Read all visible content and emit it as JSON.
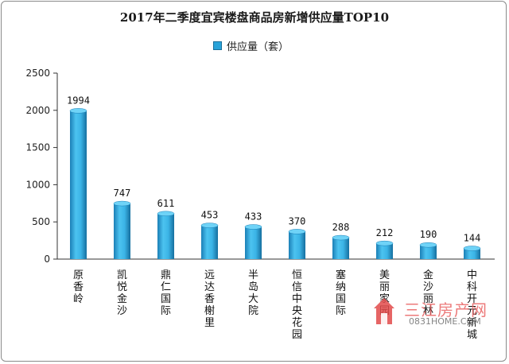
{
  "chart_data": {
    "type": "bar",
    "title": "2017年二季度宜宾楼盘商品房新增供应量TOP10",
    "legend": "供应量（套）",
    "categories": [
      "原香岭",
      "凯悦金沙",
      "鼎仁国际",
      "远达香榭里",
      "半岛大院",
      "恒信中央花园",
      "塞纳国际",
      "美丽家园",
      "金沙丽林",
      "中科开元新城"
    ],
    "values": [
      1994,
      747,
      611,
      453,
      433,
      370,
      288,
      212,
      190,
      144
    ],
    "ylim": [
      0,
      2500
    ],
    "yticks": [
      "0",
      "500",
      "1000",
      "1500",
      "2000",
      "2500"
    ],
    "xlabel": "",
    "ylabel": "",
    "grid": false,
    "legend_position": "top",
    "bar_color": "#29a3d9"
  },
  "watermark": {
    "text": "三江房产网",
    "url": "0831HOME.COM"
  }
}
